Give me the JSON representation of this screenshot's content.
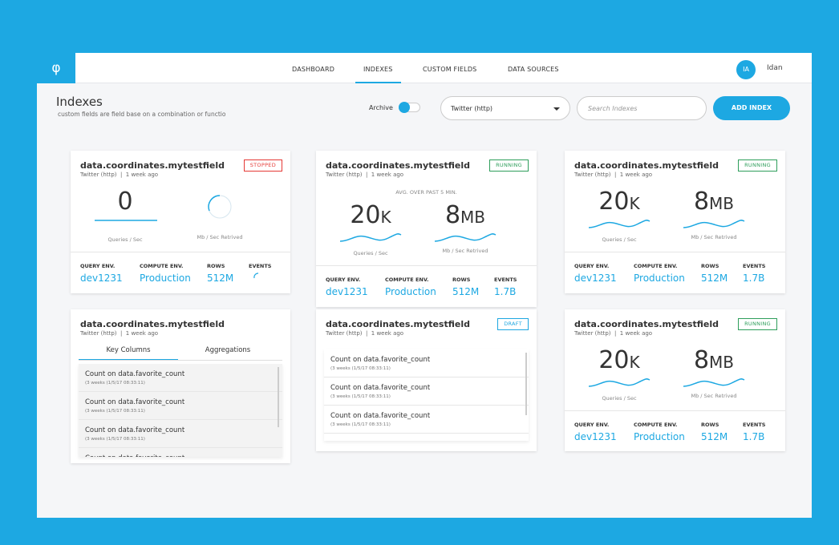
{
  "logo": "φ",
  "nav": [
    "DASHBOARD",
    "INDEXES",
    "CUSTOM FIELDS",
    "DATA SOURCES"
  ],
  "nav_active": 1,
  "user": {
    "initials": "IA",
    "name": "Idan"
  },
  "header": {
    "title": "Indexes",
    "subtitle": "custom fields are field base on a combination or functio"
  },
  "controls": {
    "archive_label": "Archive",
    "source": "Twitter (http)",
    "search_placeholder": "Search Indexes",
    "button": "ADD INDEX"
  },
  "cards": [
    {
      "title": "data.coordinates.mytestfield",
      "meta": "Twitter (http)  |  1 week ago",
      "status": "STOPPED",
      "status_color": "#e53935",
      "metrics": [
        {
          "value": "0",
          "label": "Queries / Sec"
        },
        {
          "label": "Mb / Sec Retrived",
          "loading": true
        }
      ],
      "stats": [
        {
          "label": "QUERY ENV.",
          "value": "dev1231"
        },
        {
          "label": "COMPUTE ENV.",
          "value": "Production"
        },
        {
          "label": "ROWS",
          "value": "512M"
        },
        {
          "label": "EVENTS",
          "loading": true
        }
      ]
    },
    {
      "title": "data.coordinates.mytestfield",
      "meta": "Twitter (http)  |  1 week ago",
      "status": "RUNNING",
      "status_color": "#2e9e5b",
      "note": "AVG. OVER PAST 5 MIN.",
      "metrics": [
        {
          "value": "20",
          "unit": "K",
          "label": "Queries / Sec"
        },
        {
          "value": "8",
          "unit": "MB",
          "label": "Mb / Sec Retrived"
        }
      ],
      "stats": [
        {
          "label": "QUERY ENV.",
          "value": "dev1231"
        },
        {
          "label": "COMPUTE ENV.",
          "value": "Production"
        },
        {
          "label": "ROWS",
          "value": "512M"
        },
        {
          "label": "EVENTS",
          "value": "1.7B"
        }
      ]
    },
    {
      "title": "data.coordinates.mytestfield",
      "meta": "Twitter (http)  |  1 week ago",
      "status": "RUNNING",
      "status_color": "#2e9e5b",
      "metrics": [
        {
          "value": "20",
          "unit": "K",
          "label": "Queries / Sec"
        },
        {
          "value": "8",
          "unit": "MB",
          "label": "Mb / Sec Retrived"
        }
      ],
      "stats": [
        {
          "label": "QUERY ENV.",
          "value": "dev1231"
        },
        {
          "label": "COMPUTE ENV.",
          "value": "Production"
        },
        {
          "label": "ROWS",
          "value": "512M"
        },
        {
          "label": "EVENTS",
          "value": "1.7B"
        }
      ]
    },
    {
      "title": "data.coordinates.mytestfield",
      "meta": "Twitter (http)  |  1 week ago",
      "tabs": [
        "Key Columns",
        "Aggregations"
      ],
      "items": [
        {
          "title": "Count on data.favorite_count",
          "detail": "(3 weeks (1/5/17 08:33:11)"
        },
        {
          "title": "Count on data.favorite_count",
          "detail": "(3 weeks (1/5/17 08:33:11)"
        },
        {
          "title": "Count on data.favorite_count",
          "detail": "(3 weeks (1/5/17 08:33:11)"
        },
        {
          "title": "Count on data.favorite_count"
        }
      ]
    },
    {
      "title": "data.coordinates.mytestfield",
      "meta": "Twitter (http)  |  1 week ago",
      "status": "DRAFT",
      "status_color": "#1ea7e1",
      "items": [
        {
          "title": "Count on data.favorite_count",
          "detail": "(3 weeks (1/5/17 08:33:11)"
        },
        {
          "title": "Count on data.favorite_count",
          "detail": "(3 weeks (1/5/17 08:33:11)"
        },
        {
          "title": "Count on data.favorite_count",
          "detail": "(3 weeks (1/5/17 08:33:11)"
        }
      ]
    },
    {
      "title": "data.coordinates.mytestfield",
      "meta": "Twitter (http)  |  1 week ago",
      "status": "RUNNING",
      "status_color": "#2e9e5b",
      "metrics": [
        {
          "value": "20",
          "unit": "K",
          "label": "Queries / Sec"
        },
        {
          "value": "8",
          "unit": "MB",
          "label": "Mb / Sec Retrived"
        }
      ],
      "stats": [
        {
          "label": "QUERY ENV.",
          "value": "dev1231"
        },
        {
          "label": "COMPUTE ENV.",
          "value": "Production"
        },
        {
          "label": "ROWS",
          "value": "512M"
        },
        {
          "label": "EVENTS",
          "value": "1.7B"
        }
      ]
    }
  ]
}
